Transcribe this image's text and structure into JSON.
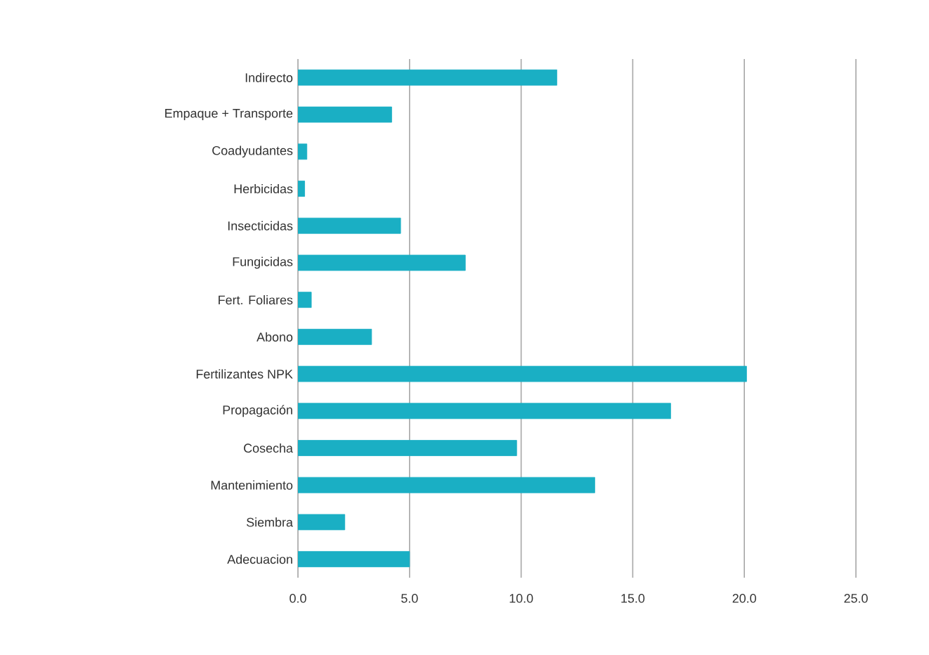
{
  "chart_data": {
    "type": "bar",
    "orientation": "horizontal",
    "categories": [
      "Indirecto",
      "Empaque + Transporte",
      "Coadyudantes",
      "Herbicidas",
      "Insecticidas",
      "Fungicidas",
      "Fert. Foliares",
      "Abono",
      "Fertilizantes NPK",
      "Propagación",
      "Cosecha",
      "Mantenimiento",
      "Siembra",
      "Adecuacion"
    ],
    "values": [
      11.6,
      4.2,
      0.4,
      0.3,
      4.6,
      7.5,
      0.6,
      3.3,
      20.1,
      16.7,
      9.8,
      13.3,
      2.1,
      5.0
    ],
    "color": "#1aafc4",
    "xlim": [
      0,
      25
    ],
    "xticks": [
      {
        "value": 0,
        "label": "0.0"
      },
      {
        "value": 5,
        "label": "5.0"
      },
      {
        "value": 10,
        "label": "10.0"
      },
      {
        "value": 15,
        "label": "15.0"
      },
      {
        "value": 20,
        "label": "20.0"
      },
      {
        "value": 25,
        "label": "25.0"
      }
    ],
    "grid": "x"
  }
}
